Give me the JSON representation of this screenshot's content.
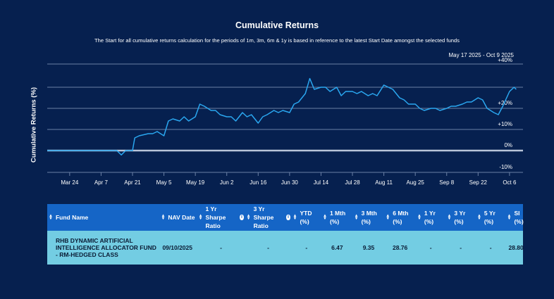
{
  "header": {
    "title": "Cumulative Returns",
    "subtitle": "The Start for all cumulative returns calculation for the periods of 1m, 3m, 6m & 1y is based in reference to the latest Start Date amongst the selected funds",
    "date_range": "May 17 2025 - Oct 9 2025"
  },
  "chart_data": {
    "type": "line",
    "ylabel": "Cumulative Returns (%)",
    "ylim": [
      -10,
      40
    ],
    "y_ticks": [
      "+40%",
      "+20%",
      "+10%",
      "0%",
      "-10%"
    ],
    "x_ticks": [
      "Mar 24",
      "Apr 7",
      "Apr 21",
      "May 5",
      "May 19",
      "Jun 2",
      "Jun 16",
      "Jun 30",
      "Jul 14",
      "Jul 28",
      "Aug 11",
      "Aug 25",
      "Sep 8",
      "Sep 22",
      "Oct 6"
    ],
    "grid": true,
    "line_color": "#2aa7f0",
    "baseline_color": "#b8c4d8",
    "series": [
      {
        "x": [
          "2025-03-14",
          "2025-03-24",
          "2025-04-07",
          "2025-04-14",
          "2025-04-16",
          "2025-04-18",
          "2025-04-21",
          "2025-04-22",
          "2025-04-24",
          "2025-04-28",
          "2025-04-30",
          "2025-05-02",
          "2025-05-05",
          "2025-05-07",
          "2025-05-09",
          "2025-05-12",
          "2025-05-14",
          "2025-05-16",
          "2025-05-19",
          "2025-05-21",
          "2025-05-23",
          "2025-05-26",
          "2025-05-28",
          "2025-05-30",
          "2025-06-02",
          "2025-06-04",
          "2025-06-06",
          "2025-06-09",
          "2025-06-11",
          "2025-06-13",
          "2025-06-16",
          "2025-06-18",
          "2025-06-20",
          "2025-06-23",
          "2025-06-25",
          "2025-06-27",
          "2025-06-30",
          "2025-07-02",
          "2025-07-04",
          "2025-07-07",
          "2025-07-09",
          "2025-07-11",
          "2025-07-14",
          "2025-07-16",
          "2025-07-18",
          "2025-07-21",
          "2025-07-23",
          "2025-07-25",
          "2025-07-28",
          "2025-07-30",
          "2025-08-01",
          "2025-08-04",
          "2025-08-06",
          "2025-08-08",
          "2025-08-11",
          "2025-08-13",
          "2025-08-15",
          "2025-08-18",
          "2025-08-20",
          "2025-08-22",
          "2025-08-25",
          "2025-08-27",
          "2025-08-29",
          "2025-09-01",
          "2025-09-03",
          "2025-09-05",
          "2025-09-08",
          "2025-09-10",
          "2025-09-12",
          "2025-09-15",
          "2025-09-17",
          "2025-09-19",
          "2025-09-22",
          "2025-09-24",
          "2025-09-26",
          "2025-09-29",
          "2025-10-01",
          "2025-10-03",
          "2025-10-06",
          "2025-10-08",
          "2025-10-09"
        ],
        "values": [
          0,
          0,
          0,
          0,
          -2,
          0,
          0,
          6,
          7,
          8,
          8,
          9,
          7,
          14,
          15,
          14,
          16,
          14,
          16,
          22,
          21,
          19,
          19,
          17,
          16,
          16,
          14,
          18,
          16,
          17,
          13,
          16,
          17,
          19,
          18,
          19,
          18,
          22,
          23,
          27,
          34,
          29,
          30,
          30,
          28,
          30,
          26,
          28,
          28,
          27,
          28,
          26,
          27,
          26,
          31,
          30,
          29,
          25,
          24,
          22,
          22,
          20,
          19,
          20,
          20,
          19,
          20,
          21,
          21,
          22,
          23,
          23,
          25,
          24,
          20,
          18,
          17,
          21,
          28,
          30,
          29
        ]
      }
    ]
  },
  "table": {
    "columns": [
      {
        "label": "Fund Name",
        "info": false
      },
      {
        "label": "NAV Date",
        "info": false
      },
      {
        "label": "1 Yr Sharpe Ratio",
        "info": true
      },
      {
        "label": "3 Yr Sharpe Ratio",
        "info": true
      },
      {
        "label": "YTD (%)",
        "info": false
      },
      {
        "label": "1 Mth (%)",
        "info": false
      },
      {
        "label": "3 Mth (%)",
        "info": false
      },
      {
        "label": "6 Mth (%)",
        "info": false
      },
      {
        "label": "1 Yr (%)",
        "info": false
      },
      {
        "label": "3 Yr (%)",
        "info": false
      },
      {
        "label": "5 Yr (%)",
        "info": false
      },
      {
        "label": "SI (%)",
        "info": false
      }
    ],
    "rows": [
      {
        "fund_name": "RHB DYNAMIC ARTIFICIAL INTELLIGENCE ALLOCATOR FUND - RM-HEDGED CLASS",
        "nav_date": "09/10/2025",
        "sharpe_1y": "-",
        "sharpe_3y": "-",
        "ytd": "-",
        "m1": "6.47",
        "m3": "9.35",
        "m6": "28.76",
        "y1": "-",
        "y3": "-",
        "y5": "-",
        "si": "28.80"
      }
    ]
  }
}
